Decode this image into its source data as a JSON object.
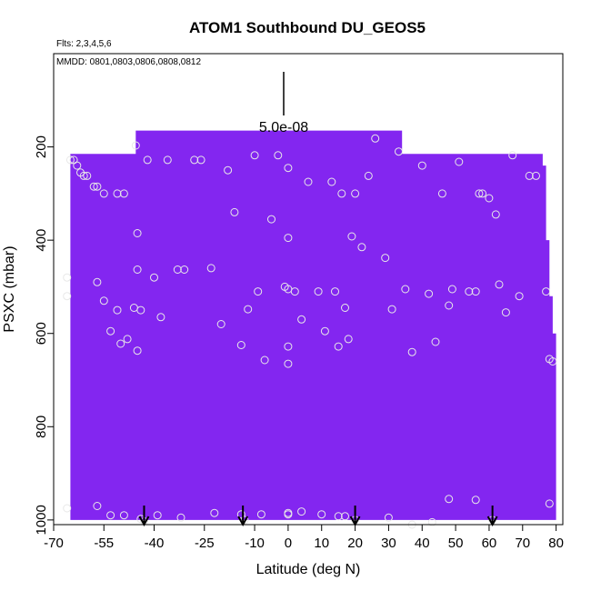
{
  "chart_data": {
    "type": "scatter",
    "title": "ATOM1 Southbound DU_GEOS5",
    "flights_label": "Flts: 2,3,4,5,6",
    "dates_label": "MMDD: 0801,0803,0806,0808,0812",
    "scale_label": "5.0e-08",
    "xlabel": "Latitude (deg N)",
    "ylabel": "PSXC (mbar)",
    "xlim": [
      -70,
      82
    ],
    "ylim": [
      1010,
      0
    ],
    "x_tick_labels": [
      "-70",
      "-55",
      "-40",
      "-25",
      "-10",
      "0",
      "10",
      "20",
      "30",
      "40",
      "50",
      "60",
      "70",
      "80"
    ],
    "x_ticks": [
      -70,
      -55,
      -40,
      -25,
      -10,
      0,
      10,
      20,
      30,
      40,
      50,
      60,
      70,
      80
    ],
    "y_tick_labels": [
      "200",
      "400",
      "600",
      "800",
      "1000"
    ],
    "y_ticks": [
      200,
      400,
      600,
      800,
      1000
    ],
    "fill_color": "#8326f0",
    "marker_color": "#e8e8e8",
    "curtain_top": [
      [
        -65,
        215
      ],
      [
        -45.5,
        215
      ],
      [
        -45.5,
        165
      ],
      [
        34,
        165
      ],
      [
        34,
        215
      ],
      [
        76,
        215
      ],
      [
        76,
        240
      ],
      [
        77,
        240
      ],
      [
        77,
        400
      ],
      [
        78,
        400
      ],
      [
        78,
        520
      ],
      [
        79,
        520
      ],
      [
        79,
        600
      ],
      [
        80,
        600
      ],
      [
        80,
        660
      ]
    ],
    "curtain_bottom": 1000,
    "curtain_left_x": -65,
    "arrows_x": [
      -43,
      -13.5,
      20,
      61
    ],
    "points": [
      [
        -65,
        228
      ],
      [
        -64,
        228
      ],
      [
        -63,
        240
      ],
      [
        -62,
        255
      ],
      [
        -61,
        262
      ],
      [
        -60,
        262
      ],
      [
        -58,
        285
      ],
      [
        -57,
        285
      ],
      [
        -55,
        300
      ],
      [
        -51,
        300
      ],
      [
        -49,
        300
      ],
      [
        -45.5,
        197
      ],
      [
        -45,
        385
      ],
      [
        -44,
        550
      ],
      [
        -42,
        228
      ],
      [
        -40,
        480
      ],
      [
        -38,
        565
      ],
      [
        -36,
        228
      ],
      [
        -33,
        463
      ],
      [
        -31,
        463
      ],
      [
        -28,
        228
      ],
      [
        -26,
        228
      ],
      [
        -23,
        460
      ],
      [
        -20,
        580
      ],
      [
        -18,
        250
      ],
      [
        -16,
        340
      ],
      [
        -14,
        625
      ],
      [
        -12,
        548
      ],
      [
        -10,
        218
      ],
      [
        -9,
        510
      ],
      [
        -7,
        657
      ],
      [
        -5,
        355
      ],
      [
        -3,
        218
      ],
      [
        -1,
        500
      ],
      [
        0,
        245
      ],
      [
        0,
        395
      ],
      [
        0,
        505
      ],
      [
        0,
        628
      ],
      [
        0,
        665
      ],
      [
        2,
        510
      ],
      [
        4,
        570
      ],
      [
        6,
        275
      ],
      [
        9,
        510
      ],
      [
        11,
        595
      ],
      [
        13,
        275
      ],
      [
        14,
        510
      ],
      [
        15,
        628
      ],
      [
        16,
        300
      ],
      [
        17,
        545
      ],
      [
        18,
        612
      ],
      [
        19,
        392
      ],
      [
        20,
        300
      ],
      [
        22,
        415
      ],
      [
        24,
        262
      ],
      [
        26,
        182
      ],
      [
        29,
        438
      ],
      [
        31,
        548
      ],
      [
        33,
        210
      ],
      [
        35,
        505
      ],
      [
        37,
        640
      ],
      [
        40,
        240
      ],
      [
        42,
        515
      ],
      [
        44,
        618
      ],
      [
        46,
        300
      ],
      [
        48,
        540
      ],
      [
        49,
        505
      ],
      [
        51,
        232
      ],
      [
        54,
        510
      ],
      [
        56,
        510
      ],
      [
        57,
        300
      ],
      [
        58,
        300
      ],
      [
        60,
        310
      ],
      [
        62,
        345
      ],
      [
        63,
        495
      ],
      [
        65,
        555
      ],
      [
        67,
        218
      ],
      [
        69,
        520
      ],
      [
        72,
        262
      ],
      [
        74,
        262
      ],
      [
        77,
        510
      ],
      [
        78,
        655
      ],
      [
        79,
        660
      ],
      [
        -66,
        480
      ],
      [
        -66,
        520
      ],
      [
        -57,
        490
      ],
      [
        -55,
        530
      ],
      [
        -53,
        595
      ],
      [
        -51,
        550
      ],
      [
        -48,
        612
      ],
      [
        -46,
        545
      ],
      [
        -45,
        463
      ],
      [
        -45,
        637
      ],
      [
        -50,
        622
      ],
      [
        -66,
        975
      ],
      [
        -57,
        970
      ],
      [
        -53,
        990
      ],
      [
        -49,
        990
      ],
      [
        -44,
        998
      ],
      [
        -39,
        990
      ],
      [
        -32,
        995
      ],
      [
        -22,
        985
      ],
      [
        -14,
        988
      ],
      [
        -8,
        988
      ],
      [
        0,
        985
      ],
      [
        0,
        988
      ],
      [
        4,
        982
      ],
      [
        10,
        988
      ],
      [
        15,
        992
      ],
      [
        17,
        992
      ],
      [
        30,
        995
      ],
      [
        37,
        1010
      ],
      [
        43,
        1005
      ],
      [
        48,
        955
      ],
      [
        56,
        957
      ],
      [
        78,
        965
      ],
      [
        -43,
        1003
      ],
      [
        -13,
        1000
      ],
      [
        20,
        1000
      ],
      [
        61,
        1000
      ]
    ]
  }
}
